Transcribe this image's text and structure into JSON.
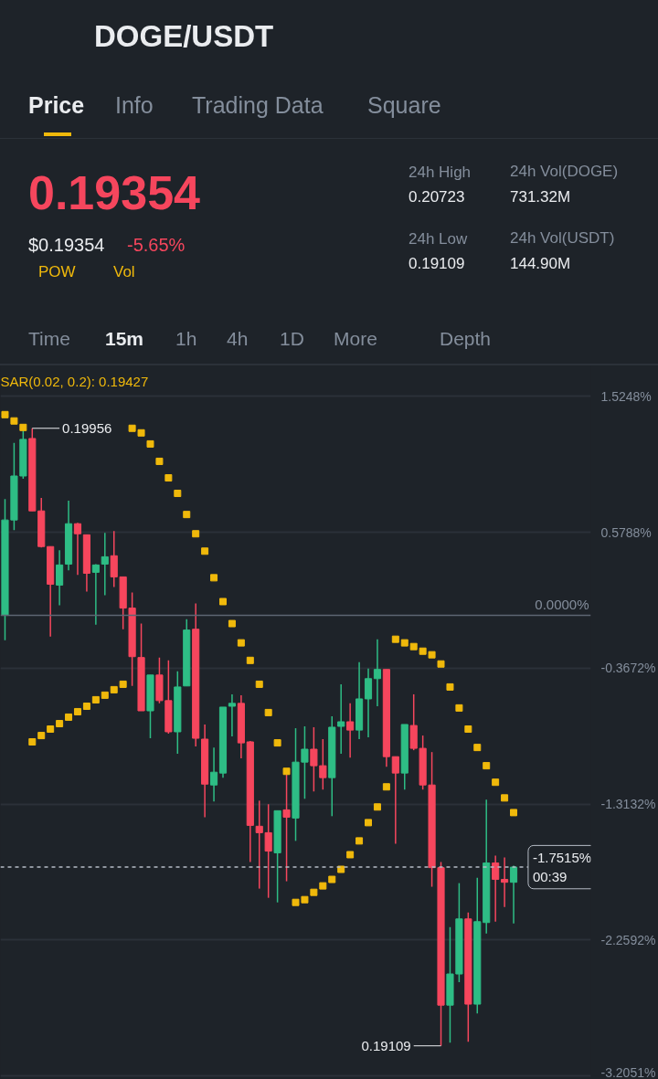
{
  "chart_data": {
    "type": "candlestick",
    "title": "DOGE/USDT",
    "subtitle": "0.19354",
    "categories": [
      null,
      null,
      null,
      null,
      null,
      null,
      null,
      null,
      null,
      null,
      null,
      null,
      null,
      null,
      null,
      null,
      null,
      null,
      null,
      null,
      null,
      null,
      null,
      null,
      null,
      null,
      null,
      null,
      null,
      null,
      null,
      null,
      null,
      null,
      null,
      null,
      null,
      null,
      null,
      null,
      null,
      null,
      null,
      null,
      null,
      null,
      null,
      null,
      null,
      null,
      null,
      null,
      null,
      null,
      null,
      null,
      null,
      null,
      null,
      null,
      null,
      null,
      null,
      null,
      null
    ],
    "ohlc": [
      [
        0,
        0.81,
        -0.172,
        0.664
      ],
      [
        0.664,
        1.2,
        0.593,
        0.97
      ],
      [
        0.97,
        1.289,
        0.951,
        1.225
      ],
      [
        1.231,
        1.302,
        0.727,
        0.727
      ],
      [
        0.727,
        0.817,
        0.472,
        0.479
      ],
      [
        0.479,
        0.479,
        -0.147,
        0.217
      ],
      [
        0.211,
        0.453,
        0.07,
        0.351
      ],
      [
        0.357,
        0.798,
        0.313,
        0.638
      ],
      [
        0.638,
        0.644,
        0.281,
        0.568
      ],
      [
        0.561,
        0.561,
        0.166,
        0.293
      ],
      [
        0.3,
        0.357,
        -0.064,
        0.351
      ],
      [
        0.357,
        0.574,
        0.14,
        0.408
      ],
      [
        0.415,
        0.587,
        0.198,
        0.268
      ],
      [
        0.268,
        0.268,
        -0.096,
        0.051
      ],
      [
        0.051,
        0.16,
        -0.491,
        -0.287
      ],
      [
        -0.293,
        -0.057,
        -0.664,
        -0.664
      ],
      [
        -0.664,
        -0.415,
        -0.855,
        -0.415
      ],
      [
        -0.415,
        -0.293,
        -0.612,
        -0.593
      ],
      [
        -0.593,
        -0.313,
        -0.823,
        -0.81
      ],
      [
        -0.81,
        -0.389,
        -0.963,
        -0.498
      ],
      [
        -0.491,
        -0.026,
        -0.491,
        -0.102
      ],
      [
        -0.096,
        0.083,
        -0.912,
        -0.855
      ],
      [
        -0.861,
        -0.759,
        -1.404,
        -1.174
      ],
      [
        -1.18,
        -0.919,
        -1.295,
        -1.091
      ],
      [
        -1.097,
        -0.638,
        -1.129,
        -0.638
      ],
      [
        -0.632,
        -0.549,
        -0.842,
        -0.612
      ],
      [
        -0.612,
        -0.555,
        -0.995,
        -0.887
      ],
      [
        -0.88,
        -0.874,
        -1.716,
        -1.461
      ],
      [
        -1.467,
        -1.289,
        -1.901,
        -1.512
      ],
      [
        -1.512,
        -1.314,
        -1.965,
        -1.64
      ],
      [
        -1.652,
        -1.359,
        -1.997,
        -1.359
      ],
      [
        -1.353,
        -1.104,
        -1.85,
        -1.404
      ],
      [
        -1.41,
        -0.785,
        -1.569,
        -1.021
      ],
      [
        -1.021,
        -0.772,
        -1.276,
        -0.931
      ],
      [
        -0.931,
        -0.778,
        -1.225,
        -1.046
      ],
      [
        -1.046,
        -0.861,
        -1.212,
        -1.129
      ],
      [
        -1.129,
        -0.702,
        -1.397,
        -0.778
      ],
      [
        -0.772,
        -0.479,
        -0.963,
        -0.74
      ],
      [
        -0.74,
        -0.612,
        -0.989,
        -0.798
      ],
      [
        -0.798,
        -0.325,
        -0.861,
        -0.581
      ],
      [
        -0.581,
        -0.37,
        -0.849,
        -0.44
      ],
      [
        -0.44,
        -0.166,
        -0.632,
        -0.376
      ],
      [
        -0.376,
        -0.376,
        -1.053,
        -0.983
      ],
      [
        -0.983,
        -0.983,
        -1.589,
        -1.097
      ],
      [
        -1.097,
        -0.759,
        -1.212,
        -0.759
      ],
      [
        -0.766,
        -0.549,
        -0.938,
        -0.925
      ],
      [
        -0.925,
        -0.836,
        -1.212,
        -1.18
      ],
      [
        -1.18,
        -0.951,
        -1.888,
        -1.755
      ],
      [
        -1.755,
        -1.716,
        -2.995,
        -2.712
      ],
      [
        -2.712,
        -2.169,
        -2.973,
        -2.495
      ],
      [
        -2.495,
        -1.863,
        -2.552,
        -2.112
      ],
      [
        -2.112,
        -2.067,
        -2.967,
        -2.705
      ],
      [
        -2.705,
        -1.825,
        -2.769,
        -2.131
      ],
      [
        -2.137,
        -1.282,
        -2.214,
        -1.723
      ],
      [
        -1.723,
        -1.672,
        -2.131,
        -1.837
      ],
      [
        -1.837,
        -1.684,
        -2.029,
        -1.857
      ],
      [
        -1.857,
        -1.742,
        -2.144,
        -1.7515
      ],
      null,
      null,
      null,
      null,
      null,
      null,
      null,
      null
    ],
    "colors": [
      "#2ebd85",
      "#2ebd85",
      "#2ebd85",
      "#f6465d",
      "#f6465d",
      "#f6465d",
      "#2ebd85",
      "#2ebd85",
      "#f6465d",
      "#f6465d",
      "#2ebd85",
      "#2ebd85",
      "#f6465d",
      "#f6465d",
      "#f6465d",
      "#f6465d",
      "#2ebd85",
      "#f6465d",
      "#f6465d",
      "#2ebd85",
      "#2ebd85",
      "#f6465d",
      "#f6465d",
      "#2ebd85",
      "#2ebd85",
      "#2ebd85",
      "#f6465d",
      "#f6465d",
      "#f6465d",
      "#f6465d",
      "#2ebd85",
      "#f6465d",
      "#2ebd85",
      "#2ebd85",
      "#f6465d",
      "#f6465d",
      "#2ebd85",
      "#2ebd85",
      "#f6465d",
      "#2ebd85",
      "#2ebd85",
      "#2ebd85",
      "#f6465d",
      "#f6465d",
      "#2ebd85",
      "#f6465d",
      "#f6465d",
      "#f6465d",
      "#f6465d",
      "#2ebd85",
      "#2ebd85",
      "#f6465d",
      "#2ebd85",
      "#2ebd85",
      "#f6465d",
      "#f6465d",
      "#2ebd85",
      null,
      null,
      null,
      null,
      null,
      null,
      null,
      null
    ],
    "series": [
      {
        "name": "SAR(0.02, 0.2): 0.19427",
        "type": "scatter",
        "marker": "square",
        "color": "#f0b90b",
        "values": [
          1.397,
          1.353,
          1.308,
          -0.88,
          -0.836,
          -0.791,
          -0.753,
          -0.708,
          -0.67,
          -0.632,
          -0.587,
          -0.555,
          -0.517,
          -0.479,
          1.302,
          1.27,
          1.193,
          1.072,
          0.957,
          0.849,
          0.702,
          0.568,
          0.447,
          0.262,
          0.096,
          -0.057,
          -0.191,
          -0.313,
          -0.479,
          -0.676,
          -0.887,
          -1.085,
          -1.997,
          -1.978,
          -1.927,
          -1.882,
          -1.837,
          -1.767,
          -1.665,
          -1.569,
          -1.442,
          -1.333,
          -1.193,
          -0.166,
          -0.191,
          -0.217,
          -0.249,
          -0.274,
          -0.338,
          -0.498,
          -0.644,
          -0.791,
          -0.919,
          -1.046,
          -1.161,
          -1.27,
          -1.372,
          null,
          null,
          null,
          null,
          null,
          null,
          null,
          null
        ]
      }
    ],
    "ylim": [
      -3.229,
      1.736
    ],
    "yticks": [
      {
        "value": 1.5248,
        "label": "1.5248%"
      },
      {
        "value": 0.5788,
        "label": "0.5788%"
      },
      {
        "value": -0.3672,
        "label": "-0.3672%"
      },
      {
        "value": -1.3132,
        "label": "-1.3132%"
      },
      {
        "value": -2.2592,
        "label": "-2.2592%"
      },
      {
        "value": -3.2051,
        "label": "-3.2051%"
      }
    ],
    "grid": "y",
    "ref_lines": [
      {
        "axis": "y",
        "value": 0,
        "label": "0.0000%",
        "color": "#5e6673",
        "line_style": "solid"
      },
      {
        "axis": "y",
        "value": -1.7515,
        "label": "-1.7515%\n00:39",
        "color": "#b7bdc6",
        "line_style": "dashed"
      }
    ],
    "annotations": [
      "Price",
      "Info",
      "Trading Data",
      "Square",
      "$0.19354",
      "-5.65%",
      "POW",
      "Vol",
      "24h High",
      "0.20723",
      "24h Low",
      "0.19109",
      "24h Vol(DOGE)",
      "731.32M",
      "24h Vol(USDT)",
      "144.90M",
      "Time",
      "15m",
      "1h",
      "4h",
      "1D",
      "More",
      "Depth",
      "0.19956",
      "0.19109"
    ]
  }
}
